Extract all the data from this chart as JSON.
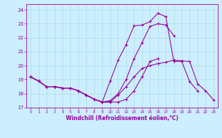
{
  "xlabel": "Windchill (Refroidissement éolien,°C)",
  "xlim": [
    -0.5,
    23.5
  ],
  "ylim": [
    17.0,
    24.4
  ],
  "yticks": [
    17,
    18,
    19,
    20,
    21,
    22,
    23,
    24
  ],
  "xticks": [
    0,
    1,
    2,
    3,
    4,
    5,
    6,
    7,
    8,
    9,
    10,
    11,
    12,
    13,
    14,
    15,
    16,
    17,
    18,
    19,
    20,
    21,
    22,
    23
  ],
  "line_color": "#990099",
  "bg_color": "#cceeff",
  "grid_color": "#aadddd",
  "lines": [
    [
      19.2,
      18.9,
      18.5,
      18.5,
      18.4,
      18.4,
      18.2,
      17.9,
      17.6,
      17.4,
      18.9,
      20.4,
      21.5,
      22.85,
      22.9,
      23.15,
      23.75,
      23.5,
      20.3,
      20.3,
      18.85,
      18.2,
      null,
      null
    ],
    [
      19.2,
      18.9,
      18.5,
      18.5,
      18.4,
      18.4,
      18.2,
      17.9,
      17.6,
      17.4,
      17.5,
      18.0,
      19.0,
      20.5,
      21.65,
      22.8,
      23.0,
      22.9,
      22.15,
      null,
      null,
      null,
      null,
      null
    ],
    [
      19.2,
      18.9,
      18.5,
      18.5,
      18.4,
      18.4,
      18.2,
      17.9,
      17.6,
      17.4,
      17.4,
      17.9,
      18.5,
      19.2,
      19.8,
      20.0,
      20.15,
      20.25,
      20.4,
      20.35,
      20.3,
      18.7,
      18.2,
      17.55
    ],
    [
      19.2,
      18.9,
      18.5,
      18.5,
      18.4,
      18.4,
      18.2,
      17.9,
      17.6,
      17.4,
      17.4,
      17.4,
      17.6,
      18.2,
      19.2,
      20.3,
      20.5,
      null,
      null,
      null,
      null,
      null,
      null,
      null
    ]
  ],
  "marker": "+",
  "markersize": 3,
  "linewidth": 0.8
}
